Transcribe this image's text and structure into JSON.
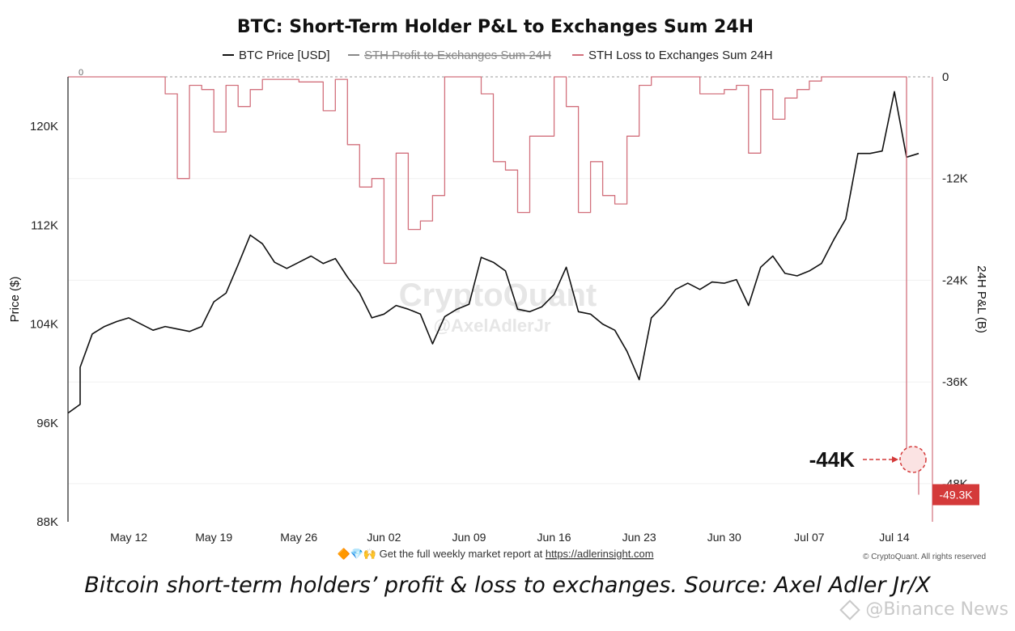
{
  "chart_data": {
    "type": "line",
    "title": "BTC: Short-Term Holder P&L to Exchanges Sum 24H",
    "legend": [
      {
        "name": "BTC Price [USD]",
        "color": "#111111",
        "strikethrough": false
      },
      {
        "name": "STH Profit to Exchanges Sum 24H",
        "color": "#888888",
        "strikethrough": true
      },
      {
        "name": "STH Loss to Exchanges Sum 24H",
        "color": "#d2707c",
        "strikethrough": false
      }
    ],
    "legend_position": "top-center",
    "ylabel_left": "Price ($)",
    "ylabel_right": "24H P&L (B)",
    "ylim_left": [
      88000,
      124000
    ],
    "ylim_right": [
      -52500,
      0
    ],
    "yticks_left": [
      {
        "value": 88000,
        "label": "88K"
      },
      {
        "value": 96000,
        "label": "96K"
      },
      {
        "value": 104000,
        "label": "104K"
      },
      {
        "value": 112000,
        "label": "112K"
      },
      {
        "value": 120000,
        "label": "120K"
      }
    ],
    "yticks_right": [
      {
        "value": 0,
        "label": "0"
      },
      {
        "value": -12000,
        "label": "-12K"
      },
      {
        "value": -24000,
        "label": "-24K"
      },
      {
        "value": -36000,
        "label": "-36K"
      },
      {
        "value": -48000,
        "label": "-48K"
      }
    ],
    "x_range": [
      "2025-05-07",
      "2025-07-17"
    ],
    "xticks": [
      {
        "date": "2025-05-12",
        "label": "May 12"
      },
      {
        "date": "2025-05-19",
        "label": "May 19"
      },
      {
        "date": "2025-05-26",
        "label": "May 26"
      },
      {
        "date": "2025-06-02",
        "label": "Jun 02"
      },
      {
        "date": "2025-06-09",
        "label": "Jun 09"
      },
      {
        "date": "2025-06-16",
        "label": "Jun 16"
      },
      {
        "date": "2025-06-23",
        "label": "Jun 23"
      },
      {
        "date": "2025-06-30",
        "label": "Jun 30"
      },
      {
        "date": "2025-07-07",
        "label": "Jul 07"
      },
      {
        "date": "2025-07-14",
        "label": "Jul 14"
      }
    ],
    "grid": true,
    "series": [
      {
        "name": "BTC Price [USD]",
        "axis": "left",
        "color": "#111111",
        "points": [
          [
            "2025-05-07",
            96800
          ],
          [
            "2025-05-08",
            97500
          ],
          [
            "2025-05-08",
            100500
          ],
          [
            "2025-05-09",
            103200
          ],
          [
            "2025-05-10",
            103800
          ],
          [
            "2025-05-11",
            104200
          ],
          [
            "2025-05-12",
            104500
          ],
          [
            "2025-05-13",
            104000
          ],
          [
            "2025-05-14",
            103500
          ],
          [
            "2025-05-15",
            103800
          ],
          [
            "2025-05-16",
            103600
          ],
          [
            "2025-05-17",
            103400
          ],
          [
            "2025-05-18",
            103800
          ],
          [
            "2025-05-19",
            105800
          ],
          [
            "2025-05-20",
            106500
          ],
          [
            "2025-05-21",
            108800
          ],
          [
            "2025-05-22",
            111200
          ],
          [
            "2025-05-23",
            110500
          ],
          [
            "2025-05-24",
            109000
          ],
          [
            "2025-05-25",
            108500
          ],
          [
            "2025-05-26",
            109000
          ],
          [
            "2025-05-27",
            109500
          ],
          [
            "2025-05-28",
            108900
          ],
          [
            "2025-05-29",
            109300
          ],
          [
            "2025-05-30",
            107800
          ],
          [
            "2025-05-31",
            106500
          ],
          [
            "2025-06-01",
            104500
          ],
          [
            "2025-06-02",
            104800
          ],
          [
            "2025-06-03",
            105500
          ],
          [
            "2025-06-04",
            105200
          ],
          [
            "2025-06-05",
            104800
          ],
          [
            "2025-06-06",
            102400
          ],
          [
            "2025-06-07",
            104600
          ],
          [
            "2025-06-08",
            105200
          ],
          [
            "2025-06-09",
            105600
          ],
          [
            "2025-06-10",
            109400
          ],
          [
            "2025-06-11",
            109000
          ],
          [
            "2025-06-12",
            108300
          ],
          [
            "2025-06-13",
            105200
          ],
          [
            "2025-06-14",
            105000
          ],
          [
            "2025-06-15",
            105400
          ],
          [
            "2025-06-16",
            106400
          ],
          [
            "2025-06-17",
            108600
          ],
          [
            "2025-06-18",
            105000
          ],
          [
            "2025-06-19",
            104800
          ],
          [
            "2025-06-20",
            104000
          ],
          [
            "2025-06-21",
            103500
          ],
          [
            "2025-06-22",
            101800
          ],
          [
            "2025-06-23",
            99500
          ],
          [
            "2025-06-24",
            104500
          ],
          [
            "2025-06-25",
            105500
          ],
          [
            "2025-06-26",
            106800
          ],
          [
            "2025-06-27",
            107300
          ],
          [
            "2025-06-28",
            106800
          ],
          [
            "2025-06-29",
            107400
          ],
          [
            "2025-06-30",
            107300
          ],
          [
            "2025-07-01",
            107600
          ],
          [
            "2025-07-02",
            105500
          ],
          [
            "2025-07-03",
            108600
          ],
          [
            "2025-07-04",
            109500
          ],
          [
            "2025-07-05",
            108100
          ],
          [
            "2025-07-06",
            107900
          ],
          [
            "2025-07-07",
            108300
          ],
          [
            "2025-07-08",
            108900
          ],
          [
            "2025-07-09",
            110800
          ],
          [
            "2025-07-10",
            112500
          ],
          [
            "2025-07-11",
            117800
          ],
          [
            "2025-07-12",
            117800
          ],
          [
            "2025-07-13",
            118000
          ],
          [
            "2025-07-14",
            122800
          ],
          [
            "2025-07-15",
            117500
          ],
          [
            "2025-07-16",
            117800
          ]
        ]
      },
      {
        "name": "STH Loss to Exchanges Sum 24H",
        "axis": "right",
        "color": "#d2707c",
        "points": [
          [
            "2025-05-07",
            0
          ],
          [
            "2025-05-14",
            0
          ],
          [
            "2025-05-15",
            -2000
          ],
          [
            "2025-05-16",
            -12000
          ],
          [
            "2025-05-17",
            -1000
          ],
          [
            "2025-05-18",
            -1500
          ],
          [
            "2025-05-19",
            -6500
          ],
          [
            "2025-05-20",
            -1000
          ],
          [
            "2025-05-21",
            -3500
          ],
          [
            "2025-05-22",
            -1500
          ],
          [
            "2025-05-23",
            -300
          ],
          [
            "2025-05-26",
            -600
          ],
          [
            "2025-05-28",
            -4000
          ],
          [
            "2025-05-29",
            -300
          ],
          [
            "2025-05-30",
            -8000
          ],
          [
            "2025-05-31",
            -13000
          ],
          [
            "2025-06-01",
            -12000
          ],
          [
            "2025-06-02",
            -22000
          ],
          [
            "2025-06-03",
            -9000
          ],
          [
            "2025-06-04",
            -18000
          ],
          [
            "2025-06-05",
            -17000
          ],
          [
            "2025-06-06",
            -14000
          ],
          [
            "2025-06-07",
            0
          ],
          [
            "2025-06-09",
            0
          ],
          [
            "2025-06-10",
            -2000
          ],
          [
            "2025-06-11",
            -10000
          ],
          [
            "2025-06-12",
            -11000
          ],
          [
            "2025-06-13",
            -16000
          ],
          [
            "2025-06-14",
            -7000
          ],
          [
            "2025-06-16",
            0
          ],
          [
            "2025-06-17",
            -3500
          ],
          [
            "2025-06-18",
            -16000
          ],
          [
            "2025-06-19",
            -10000
          ],
          [
            "2025-06-20",
            -14000
          ],
          [
            "2025-06-21",
            -15000
          ],
          [
            "2025-06-22",
            -7000
          ],
          [
            "2025-06-23",
            -1000
          ],
          [
            "2025-06-24",
            0
          ],
          [
            "2025-06-27",
            0
          ],
          [
            "2025-06-28",
            -2000
          ],
          [
            "2025-06-30",
            -1500
          ],
          [
            "2025-07-01",
            -1000
          ],
          [
            "2025-07-02",
            -9000
          ],
          [
            "2025-07-03",
            -1500
          ],
          [
            "2025-07-04",
            -5000
          ],
          [
            "2025-07-05",
            -2500
          ],
          [
            "2025-07-06",
            -1500
          ],
          [
            "2025-07-07",
            -500
          ],
          [
            "2025-07-08",
            0
          ],
          [
            "2025-07-15",
            0
          ],
          [
            "2025-07-15",
            -44000
          ],
          [
            "2025-07-16",
            -49300
          ]
        ]
      }
    ],
    "baseline_label": "0",
    "annotations": [
      {
        "text": "-44K",
        "date": "2025-07-16",
        "value": -44000,
        "marker": "dashed-circle"
      }
    ],
    "last_value_label": "-49.3K",
    "watermark": {
      "brand": "CryptoQuant",
      "handle": "@AxelAdlerJr"
    },
    "footer": {
      "prefix": "🔶💎🙌  Get the full weekly market report at ",
      "link": "https://adlerinsight.com",
      "copyright": "© CryptoQuant. All rights reserved"
    }
  },
  "caption": "Bitcoin short-term holders’ profit & loss to exchanges. Source: Axel Adler Jr/X",
  "source_mark": "@Binance News"
}
